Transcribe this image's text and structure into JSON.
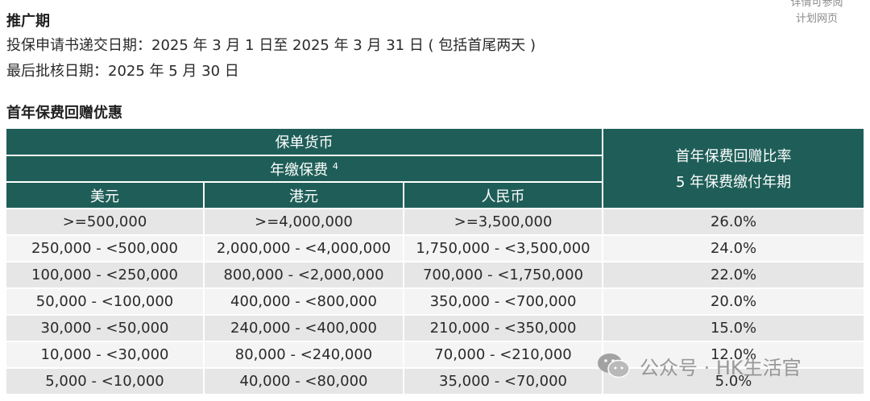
{
  "side_note": {
    "line1": "详情可参阅",
    "line2": "计划网页"
  },
  "promotion": {
    "title": "推广期",
    "application": "投保申请书递交日期：2025 年 3 月 1 日至 2025 年 3 月 31 日 ( 包括首尾两天 )",
    "approval": "最后批核日期：2025 年 5 月 30 日"
  },
  "rebate": {
    "title": "首年保费回赠优惠",
    "header": {
      "policy_currency": "保单货币",
      "annual_premium": "年缴保费",
      "footnote": "4",
      "rate_line1": "首年保费回赠比率",
      "rate_line2": "5 年保费缴付年期",
      "currencies": [
        "美元",
        "港元",
        "人民币"
      ]
    },
    "rows": [
      {
        "usd": ">=500,000",
        "hkd": ">=4,000,000",
        "rmb": ">=3,500,000",
        "rate": "26.0%"
      },
      {
        "usd": "250,000 - <500,000",
        "hkd": "2,000,000 - <4,000,000",
        "rmb": "1,750,000 - <3,500,000",
        "rate": "24.0%"
      },
      {
        "usd": "100,000 - <250,000",
        "hkd": "800,000 - <2,000,000",
        "rmb": "700,000 - <1,750,000",
        "rate": "22.0%"
      },
      {
        "usd": "50,000 - <100,000",
        "hkd": "400,000 - <800,000",
        "rmb": "350,000 - <700,000",
        "rate": "20.0%"
      },
      {
        "usd": "30,000 - <50,000",
        "hkd": "240,000 - <400,000",
        "rmb": "210,000 - <350,000",
        "rate": "15.0%"
      },
      {
        "usd": "10,000 - <30,000",
        "hkd": "80,000 - <240,000",
        "rmb": "70,000 - <210,000",
        "rate": "12.0%"
      },
      {
        "usd": "5,000 - <10,000",
        "hkd": "40,000 - <80,000",
        "rmb": "35,000 - <70,000",
        "rate": "5.0%"
      }
    ]
  },
  "watermark": {
    "text": "公众号 · HK生活官",
    "icon": "wechat-icon"
  },
  "colors": {
    "header_bg": "#1f5e58",
    "row_shade": "#e6e6e6",
    "row_plain": "#f4f4f4"
  }
}
